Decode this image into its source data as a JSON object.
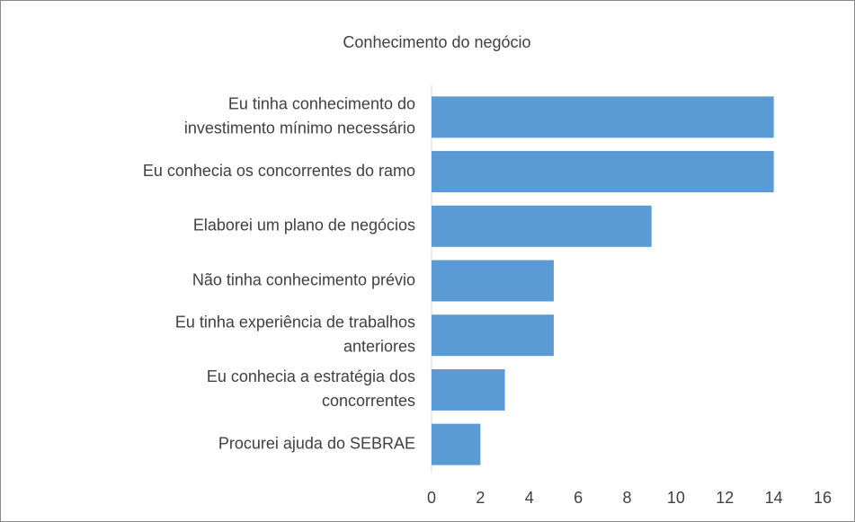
{
  "chart_data": {
    "type": "barh",
    "title": "Conhecimento  do negócio",
    "categories": [
      [
        "Eu tinha conhecimento do",
        "investimento mínimo necessário"
      ],
      [
        "Eu conhecia os concorrentes do ramo"
      ],
      [
        "Elaborei um plano de negócios"
      ],
      [
        "Não tinha conhecimento prévio"
      ],
      [
        "Eu tinha experiência de trabalhos",
        "anteriores"
      ],
      [
        "Eu conhecia a estratégia dos",
        "concorrentes"
      ],
      [
        "Procurei ajuda do SEBRAE"
      ]
    ],
    "values": [
      14,
      14,
      9,
      5,
      5,
      3,
      2
    ],
    "color": "#5b9bd5",
    "xlim": [
      0,
      16
    ],
    "xticks": [
      0,
      2,
      4,
      6,
      8,
      10,
      12,
      14,
      16
    ],
    "grid": false
  }
}
